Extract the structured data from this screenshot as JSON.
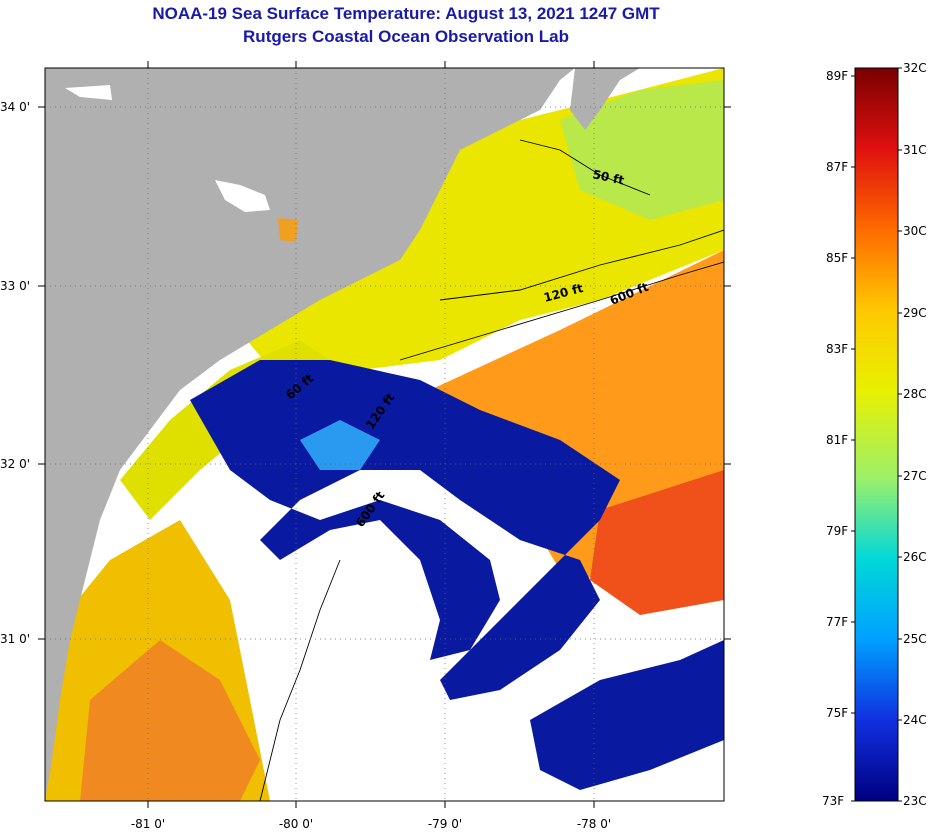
{
  "header": {
    "title_line1": "NOAA-19 Sea Surface Temperature:  August 13, 2021 1247 GMT",
    "title_line2": "Rutgers Coastal Ocean Observation Lab"
  },
  "map": {
    "lat_labels": [
      "34 0'",
      "33 0'",
      "32 0'",
      "31 0'"
    ],
    "lon_labels": [
      "-81 0'",
      "-80 0'",
      "-79 0'",
      "-78 0'"
    ],
    "isobath_labels": [
      "50 ft",
      "120 ft",
      "600 ft",
      "60 ft",
      "120 ft",
      "600 ft"
    ],
    "colors": {
      "land": "#b0b0b0",
      "cloud": "#ffffff",
      "cold_water": "#001aa8",
      "warm_water": "#ff8a1a"
    }
  },
  "colorbar": {
    "fahrenheit_labels": [
      "89F",
      "87F",
      "85F",
      "83F",
      "81F",
      "79F",
      "77F",
      "75F",
      "73F"
    ],
    "celsius_labels": [
      "32C",
      "31C",
      "30C",
      "29C",
      "28C",
      "27C",
      "26C",
      "25C",
      "24C",
      "23C"
    ],
    "gradient_stops": [
      "#7a0000",
      "#e01010",
      "#ff6a00",
      "#ffc800",
      "#e8f000",
      "#9cf06a",
      "#00d8d8",
      "#00a0ff",
      "#1030e0",
      "#000080"
    ]
  }
}
